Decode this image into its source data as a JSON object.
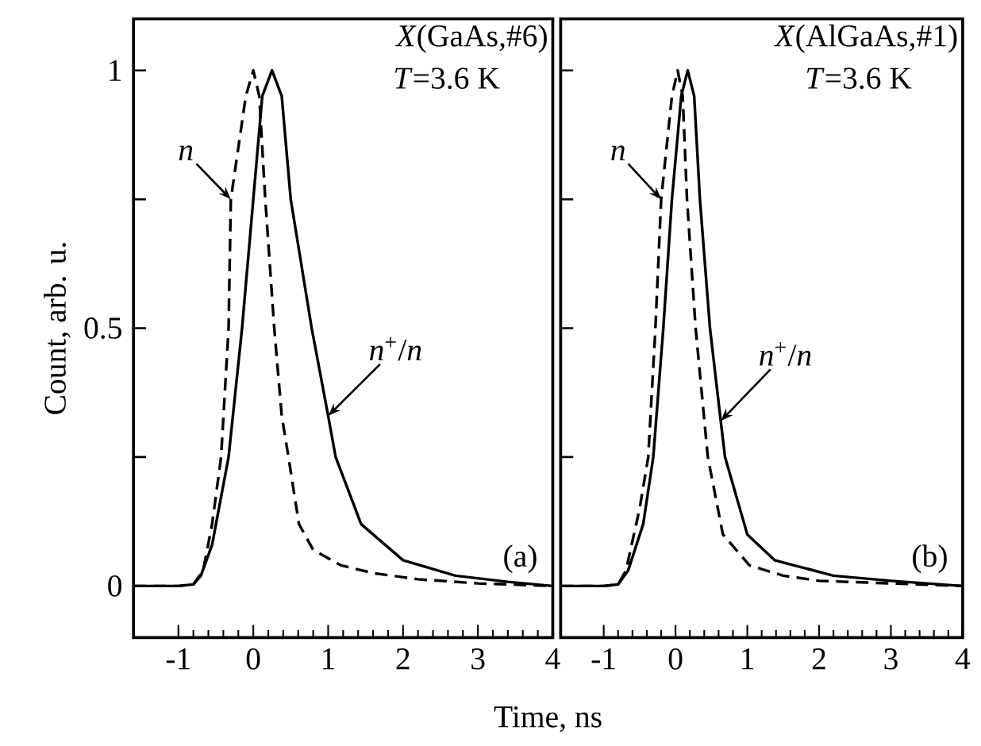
{
  "chart_data": [
    {
      "type": "line",
      "title": "*X*(GaAs,#6)",
      "subtitle": "*T*=3.6 K",
      "xlabel": "Time, ns",
      "ylabel": "Count, arb. u.",
      "xlim": [
        -1.6,
        4
      ],
      "ylim": [
        -0.1,
        1.1
      ],
      "xticks": [
        -1,
        0,
        1,
        2,
        3,
        4
      ],
      "yticks": [
        0,
        {
          "value": 0.25,
          "label": null
        },
        0.5,
        {
          "value": 0.75,
          "label": null
        },
        1
      ],
      "series": [
        {
          "x": [
            -1.6,
            -1,
            -0.8,
            -0.67,
            -0.55,
            -0.43,
            -0.33,
            -0.3,
            -0.1,
            0,
            0.08,
            0.16,
            0.28,
            0.38,
            0.47,
            0.61,
            0.8,
            1.17,
            1.6,
            2.2,
            3,
            4
          ],
          "values": [
            0,
            0,
            0.003,
            0.03,
            0.12,
            0.25,
            0.5,
            0.75,
            0.95,
            1,
            0.95,
            0.75,
            0.5,
            0.33,
            0.25,
            0.12,
            0.07,
            0.04,
            0.025,
            0.013,
            0.005,
            0
          ],
          "color": "#000000",
          "line_style": "dashed"
        },
        {
          "x": [
            -1.6,
            -1,
            -0.8,
            -0.7,
            -0.55,
            -0.33,
            -0.15,
            0,
            0.12,
            0.25,
            0.38,
            0.5,
            0.78,
            1.0,
            1.1,
            1.44,
            2.0,
            2.7,
            3.4,
            4
          ],
          "values": [
            0,
            0,
            0.003,
            0.02,
            0.08,
            0.25,
            0.5,
            0.75,
            0.95,
            1,
            0.95,
            0.75,
            0.5,
            0.33,
            0.25,
            0.12,
            0.05,
            0.02,
            0.008,
            0
          ],
          "color": "#000000",
          "line_style": "solid"
        }
      ],
      "annotations": [
        "(a)",
        {
          "text": "*n*",
          "x": -0.3,
          "y": 0.75
        },
        {
          "text": "*n*$^{+}$/*n*",
          "x": 1.0,
          "y": 0.33
        }
      ]
    },
    {
      "type": "line",
      "title": "*X*(AlGaAs,#1)",
      "subtitle": "*T*=3.6 K",
      "tick_labels": "x",
      "xlim": [
        -1.6,
        4
      ],
      "ylim": [
        -0.1,
        1.1
      ],
      "xticks": [
        -1,
        0,
        1,
        2,
        3,
        4
      ],
      "yticks": [
        0,
        {
          "value": 0.25,
          "label": null
        },
        {
          "value": 0.5,
          "label": null
        },
        {
          "value": 0.75,
          "label": null
        },
        {
          "value": 1,
          "label": null
        }
      ],
      "series": [
        {
          "x": [
            -1.6,
            -1,
            -0.8,
            -0.69,
            -0.5,
            -0.38,
            -0.28,
            -0.2,
            -0.05,
            0.03,
            0.1,
            0.16,
            0.28,
            0.45,
            0.66,
            1.03,
            1.5,
            2,
            3,
            4
          ],
          "values": [
            0,
            0,
            0.003,
            0.03,
            0.15,
            0.25,
            0.5,
            0.75,
            0.95,
            1,
            0.95,
            0.75,
            0.5,
            0.25,
            0.1,
            0.04,
            0.02,
            0.01,
            0.005,
            0
          ],
          "color": "#000000",
          "line_style": "dashed"
        },
        {
          "x": [
            -1.6,
            -1,
            -0.8,
            -0.66,
            -0.45,
            -0.31,
            -0.17,
            -0.05,
            0.08,
            0.17,
            0.26,
            0.34,
            0.48,
            0.63,
            0.69,
            1.0,
            1.38,
            2.2,
            3,
            4
          ],
          "values": [
            0,
            0,
            0.003,
            0.03,
            0.12,
            0.25,
            0.5,
            0.75,
            0.95,
            1,
            0.95,
            0.75,
            0.5,
            0.32,
            0.25,
            0.1,
            0.05,
            0.02,
            0.01,
            0
          ],
          "color": "#000000",
          "line_style": "solid"
        }
      ],
      "annotations": [
        "(b)",
        {
          "text": "*n*",
          "x": -0.2,
          "y": 0.75
        },
        {
          "text": "*n*$^{+}$/*n*",
          "x": 0.63,
          "y": 0.32
        }
      ]
    }
  ]
}
